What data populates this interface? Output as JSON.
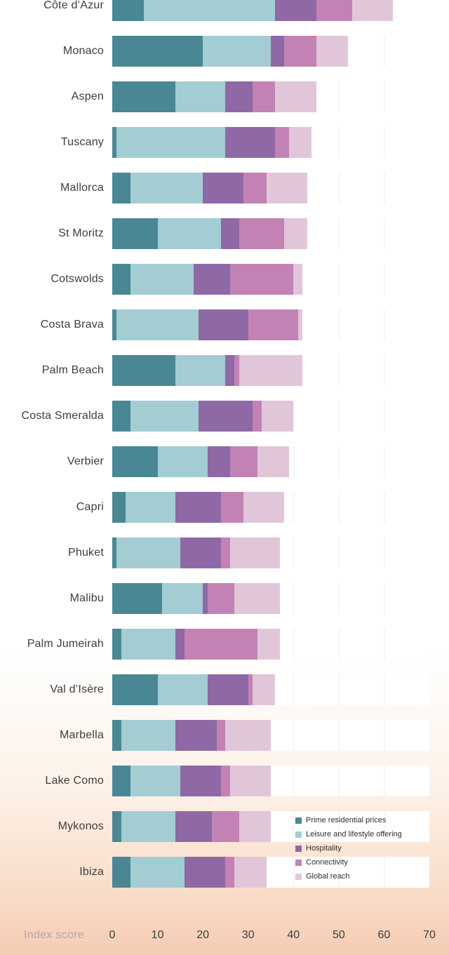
{
  "chart_data": {
    "type": "bar",
    "orientation": "horizontal",
    "stacked": true,
    "title": "",
    "xlabel": "Index score",
    "ylabel": "",
    "xlim": [
      0,
      70
    ],
    "xticks": [
      0,
      10,
      20,
      30,
      40,
      50,
      60,
      70
    ],
    "grid": true,
    "legend_position": "bottom-right",
    "categories": [
      "Côte d’Azur",
      "Monaco",
      "Aspen",
      "Tuscany",
      "Mallorca",
      "St Moritz",
      "Cotswolds",
      "Costa Brava",
      "Palm Beach",
      "Costa Smeralda",
      "Verbier",
      "Capri",
      "Phuket",
      "Malibu",
      "Palm Jumeirah",
      "Val d’Isère",
      "Marbella",
      "Lake Como",
      "Mykonos",
      "Ibiza"
    ],
    "series": [
      {
        "name": "Prime residential prices",
        "color": "#4a8794",
        "values": [
          7,
          20,
          14,
          1,
          4,
          10,
          4,
          1,
          14,
          4,
          10,
          3,
          1,
          11,
          2,
          10,
          2,
          4,
          2,
          4
        ]
      },
      {
        "name": "Leisure and lifestyle offering",
        "color": "#a3cdd2",
        "values": [
          29,
          15,
          11,
          24,
          16,
          14,
          14,
          18,
          11,
          15,
          11,
          11,
          14,
          9,
          12,
          11,
          12,
          11,
          12,
          12
        ]
      },
      {
        "name": "Hospitality",
        "color": "#8f68a6",
        "values": [
          9,
          3,
          6,
          11,
          9,
          4,
          8,
          11,
          2,
          12,
          5,
          10,
          9,
          1,
          2,
          9,
          9,
          9,
          8,
          9
        ]
      },
      {
        "name": "Connectivity",
        "color": "#c283b4",
        "values": [
          8,
          7,
          5,
          3,
          5,
          10,
          14,
          11,
          1,
          2,
          6,
          5,
          2,
          6,
          16,
          1,
          2,
          2,
          6,
          2
        ]
      },
      {
        "name": "Global reach",
        "color": "#e1c6da",
        "values": [
          9,
          7,
          9,
          5,
          9,
          5,
          2,
          1,
          14,
          7,
          7,
          9,
          11,
          10,
          5,
          5,
          10,
          9,
          7,
          7
        ]
      }
    ],
    "totals": [
      62,
      52,
      45,
      44,
      43,
      43,
      42,
      42,
      42,
      40,
      39,
      38,
      37,
      37,
      37,
      36,
      35,
      35,
      35,
      34
    ]
  }
}
